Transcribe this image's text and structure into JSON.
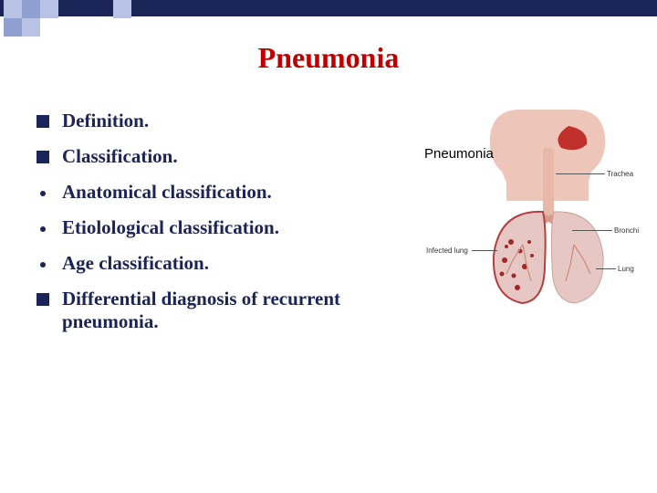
{
  "title": {
    "text": "Pneumonia",
    "color": "#c00000"
  },
  "accent": {
    "bar_color": "#1a2456",
    "checker_light": "#b8c2e4",
    "checker_dark": "#8fa0d0"
  },
  "bullets": [
    {
      "type": "square",
      "text": "Definition.",
      "color": "#1a2456"
    },
    {
      "type": "square",
      "text": "Classification.",
      "color": "#1a2456"
    },
    {
      "type": "dot",
      "text": "Anatomical  classification.",
      "color": "#1a2456"
    },
    {
      "type": "dot",
      "text": "Etiolological classification.",
      "color": "#1a2456"
    },
    {
      "type": "dot",
      "text": "Age classification.",
      "color": "#1a2456"
    },
    {
      "type": "square",
      "text": "Differential diagnosis of recurrent pneumonia.",
      "color": "#1a2456"
    }
  ],
  "diagram": {
    "title": "Pneumonia",
    "labels": {
      "trachea": "Trachea",
      "bronchi": "Bronchi",
      "lung": "Lung",
      "infected": "Infected lung"
    },
    "colors": {
      "head": "#eec5b9",
      "mouth": "#c0302c",
      "windpipe": "#e8b8a8",
      "lung_right": "#e7c7c4",
      "lung_left_outline": "#b34040",
      "lung_left_fill": "#e7c7c4",
      "infected_spots": "#a02828",
      "bronchi": "#d89a88"
    }
  }
}
